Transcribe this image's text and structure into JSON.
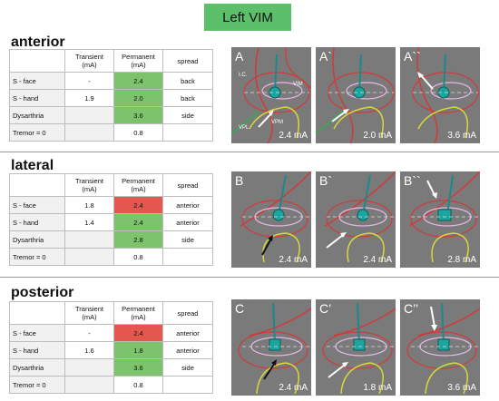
{
  "title": "Left VIM",
  "headers": {
    "transient": "Transient (mA)",
    "permanent": "Permanent (mA)",
    "spread": "spread"
  },
  "sections": [
    {
      "label": "anterior",
      "rows": [
        {
          "name": "S - face",
          "transient": "-",
          "permanent": "2.4",
          "spread": "back"
        },
        {
          "name": "S - hand",
          "transient": "1.9",
          "permanent": "2.0",
          "spread": "back"
        },
        {
          "name": "Dysarthria",
          "transient": "",
          "permanent": "3.6",
          "spread": "side"
        },
        {
          "name": "Tremor = 0",
          "transient": "",
          "permanent": "0.8",
          "spread": ""
        }
      ],
      "panels": [
        {
          "label": "A",
          "current": "2.4 mA",
          "annotations": [
            "I.C.",
            "VIM",
            "VPL",
            "VPM"
          ]
        },
        {
          "label": "A`",
          "current": "2.0 mA"
        },
        {
          "label": "A``",
          "current": "3.6 mA"
        }
      ]
    },
    {
      "label": "lateral",
      "rows": [
        {
          "name": "S - face",
          "transient": "1.8",
          "permanent": "2.4",
          "spread": "anterior"
        },
        {
          "name": "S - hand",
          "transient": "1.4",
          "permanent": "2.4",
          "spread": "anterior"
        },
        {
          "name": "Dysarthria",
          "transient": "",
          "permanent": "2.8",
          "spread": "side"
        },
        {
          "name": "Tremor = 0",
          "transient": "",
          "permanent": "0.8",
          "spread": ""
        }
      ],
      "panels": [
        {
          "label": "B",
          "current": "2.4 mA"
        },
        {
          "label": "B`",
          "current": "2.4 mA"
        },
        {
          "label": "B``",
          "current": "2.8 mA"
        }
      ]
    },
    {
      "label": "posterior",
      "rows": [
        {
          "name": "S - face",
          "transient": "-",
          "permanent": "2.4",
          "spread": "anterior"
        },
        {
          "name": "S - hand",
          "transient": "1.6",
          "permanent": "1.8",
          "spread": "anterior"
        },
        {
          "name": "Dysarthria",
          "transient": "",
          "permanent": "3.6",
          "spread": "side"
        },
        {
          "name": "Tremor = 0",
          "transient": "",
          "permanent": "0.8",
          "spread": ""
        }
      ],
      "panels": [
        {
          "label": "C",
          "current": "2.4 mA"
        },
        {
          "label": "C’",
          "current": "1.8 mA"
        },
        {
          "label": "C’’",
          "current": "3.6 mA"
        }
      ]
    }
  ],
  "cell_colors": {
    "green": "#7cc36c",
    "red": "#e4574f",
    "badge": "#5cbf6a"
  }
}
